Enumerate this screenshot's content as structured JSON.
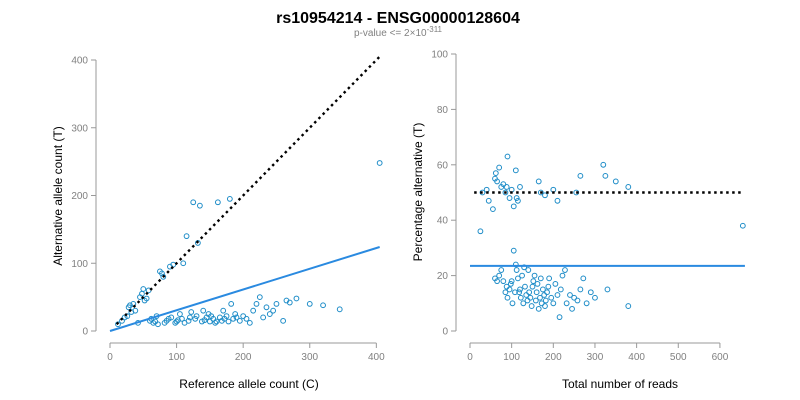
{
  "title": "rs10954214 - ENSG00000128604",
  "subtitle": {
    "prefix": "p-value <= 2",
    "times": "×",
    "base": "10",
    "exponent": "-311"
  },
  "colors": {
    "points": "#1f8dc8",
    "fit": "#2a8ae0",
    "reference": "#000000",
    "axis": "#999999",
    "tick_text": "#808080"
  },
  "chart_data": [
    {
      "type": "scatter",
      "xlabel": "Reference allele count (C)",
      "ylabel": "Alternative allele count (T)",
      "xlim": [
        0,
        410
      ],
      "ylim": [
        0,
        400
      ],
      "xticks": [
        0,
        100,
        200,
        300,
        400
      ],
      "yticks": [
        0,
        100,
        200,
        300,
        400
      ],
      "reference_line": {
        "style": "dotted",
        "from": [
          10,
          10
        ],
        "to": [
          405,
          405
        ]
      },
      "fit_line": {
        "style": "solid",
        "from": [
          0,
          0
        ],
        "to": [
          405,
          124
        ]
      },
      "points": [
        [
          12,
          10
        ],
        [
          18,
          15
        ],
        [
          22,
          20
        ],
        [
          26,
          22
        ],
        [
          28,
          35
        ],
        [
          30,
          38
        ],
        [
          32,
          28
        ],
        [
          35,
          40
        ],
        [
          38,
          30
        ],
        [
          42,
          12
        ],
        [
          45,
          50
        ],
        [
          48,
          55
        ],
        [
          50,
          62
        ],
        [
          52,
          45
        ],
        [
          55,
          48
        ],
        [
          58,
          60
        ],
        [
          60,
          15
        ],
        [
          62,
          18
        ],
        [
          65,
          12
        ],
        [
          68,
          14
        ],
        [
          70,
          22
        ],
        [
          72,
          10
        ],
        [
          75,
          88
        ],
        [
          78,
          85
        ],
        [
          80,
          80
        ],
        [
          82,
          12
        ],
        [
          85,
          15
        ],
        [
          88,
          18
        ],
        [
          90,
          95
        ],
        [
          92,
          20
        ],
        [
          95,
          98
        ],
        [
          98,
          12
        ],
        [
          100,
          14
        ],
        [
          102,
          16
        ],
        [
          105,
          25
        ],
        [
          108,
          18
        ],
        [
          110,
          100
        ],
        [
          112,
          12
        ],
        [
          115,
          140
        ],
        [
          118,
          15
        ],
        [
          120,
          20
        ],
        [
          122,
          28
        ],
        [
          125,
          190
        ],
        [
          128,
          18
        ],
        [
          130,
          22
        ],
        [
          132,
          130
        ],
        [
          135,
          185
        ],
        [
          138,
          14
        ],
        [
          140,
          30
        ],
        [
          142,
          16
        ],
        [
          145,
          20
        ],
        [
          148,
          25
        ],
        [
          150,
          14
        ],
        [
          152,
          22
        ],
        [
          155,
          18
        ],
        [
          158,
          12
        ],
        [
          160,
          14
        ],
        [
          162,
          190
        ],
        [
          165,
          20
        ],
        [
          168,
          15
        ],
        [
          170,
          30
        ],
        [
          172,
          18
        ],
        [
          175,
          22
        ],
        [
          178,
          14
        ],
        [
          180,
          195
        ],
        [
          182,
          40
        ],
        [
          185,
          18
        ],
        [
          188,
          25
        ],
        [
          190,
          20
        ],
        [
          195,
          15
        ],
        [
          200,
          22
        ],
        [
          205,
          18
        ],
        [
          210,
          12
        ],
        [
          215,
          30
        ],
        [
          220,
          40
        ],
        [
          225,
          50
        ],
        [
          230,
          20
        ],
        [
          235,
          35
        ],
        [
          240,
          25
        ],
        [
          245,
          30
        ],
        [
          250,
          40
        ],
        [
          260,
          15
        ],
        [
          265,
          45
        ],
        [
          270,
          42
        ],
        [
          280,
          48
        ],
        [
          300,
          40
        ],
        [
          320,
          38
        ],
        [
          345,
          32
        ],
        [
          405,
          248
        ]
      ]
    },
    {
      "type": "scatter",
      "xlabel": "Total number of reads",
      "ylabel": "Percentage alternative (T)",
      "xlim": [
        0,
        665
      ],
      "ylim": [
        0,
        100
      ],
      "xticks": [
        0,
        100,
        200,
        300,
        400,
        500,
        600
      ],
      "yticks": [
        0,
        20,
        40,
        60,
        80,
        100
      ],
      "reference_line": {
        "style": "dotted",
        "y": 50,
        "from_x": 10,
        "to_x": 655
      },
      "fit_line": {
        "style": "solid",
        "y": 23.5,
        "from_x": 0,
        "to_x": 660
      },
      "points": [
        [
          25,
          36
        ],
        [
          30,
          50
        ],
        [
          40,
          51
        ],
        [
          45,
          47
        ],
        [
          55,
          44
        ],
        [
          60,
          55
        ],
        [
          62,
          57
        ],
        [
          65,
          54
        ],
        [
          70,
          59
        ],
        [
          75,
          52
        ],
        [
          80,
          53
        ],
        [
          85,
          50
        ],
        [
          88,
          52
        ],
        [
          90,
          63
        ],
        [
          95,
          48
        ],
        [
          100,
          51
        ],
        [
          105,
          45
        ],
        [
          110,
          58
        ],
        [
          112,
          48
        ],
        [
          115,
          47
        ],
        [
          120,
          52
        ],
        [
          165,
          54
        ],
        [
          170,
          50
        ],
        [
          180,
          49
        ],
        [
          200,
          51
        ],
        [
          210,
          47
        ],
        [
          255,
          50
        ],
        [
          265,
          56
        ],
        [
          320,
          60
        ],
        [
          325,
          56
        ],
        [
          350,
          54
        ],
        [
          380,
          52
        ],
        [
          655,
          38
        ],
        [
          60,
          19
        ],
        [
          65,
          18
        ],
        [
          70,
          20
        ],
        [
          75,
          22
        ],
        [
          80,
          18
        ],
        [
          85,
          14
        ],
        [
          88,
          16
        ],
        [
          90,
          12
        ],
        [
          95,
          15
        ],
        [
          98,
          17
        ],
        [
          100,
          18
        ],
        [
          102,
          10
        ],
        [
          105,
          29
        ],
        [
          108,
          14
        ],
        [
          110,
          24
        ],
        [
          112,
          22
        ],
        [
          115,
          19
        ],
        [
          118,
          14
        ],
        [
          120,
          15
        ],
        [
          122,
          12
        ],
        [
          125,
          20
        ],
        [
          128,
          10
        ],
        [
          130,
          23
        ],
        [
          132,
          16
        ],
        [
          135,
          13
        ],
        [
          138,
          11
        ],
        [
          140,
          22
        ],
        [
          142,
          14
        ],
        [
          145,
          12
        ],
        [
          148,
          9
        ],
        [
          150,
          16
        ],
        [
          152,
          18
        ],
        [
          155,
          20
        ],
        [
          158,
          11
        ],
        [
          160,
          14
        ],
        [
          162,
          17
        ],
        [
          165,
          8
        ],
        [
          168,
          12
        ],
        [
          170,
          19
        ],
        [
          172,
          10
        ],
        [
          175,
          15
        ],
        [
          178,
          13
        ],
        [
          180,
          9
        ],
        [
          182,
          11
        ],
        [
          185,
          14
        ],
        [
          188,
          16
        ],
        [
          190,
          19
        ],
        [
          195,
          12
        ],
        [
          200,
          10
        ],
        [
          205,
          17
        ],
        [
          210,
          13
        ],
        [
          215,
          5
        ],
        [
          218,
          15
        ],
        [
          222,
          20
        ],
        [
          228,
          22
        ],
        [
          232,
          10
        ],
        [
          240,
          13
        ],
        [
          245,
          8
        ],
        [
          250,
          12
        ],
        [
          258,
          11
        ],
        [
          265,
          15
        ],
        [
          272,
          19
        ],
        [
          280,
          10
        ],
        [
          290,
          14
        ],
        [
          300,
          12
        ],
        [
          330,
          15
        ],
        [
          380,
          9
        ]
      ]
    }
  ]
}
